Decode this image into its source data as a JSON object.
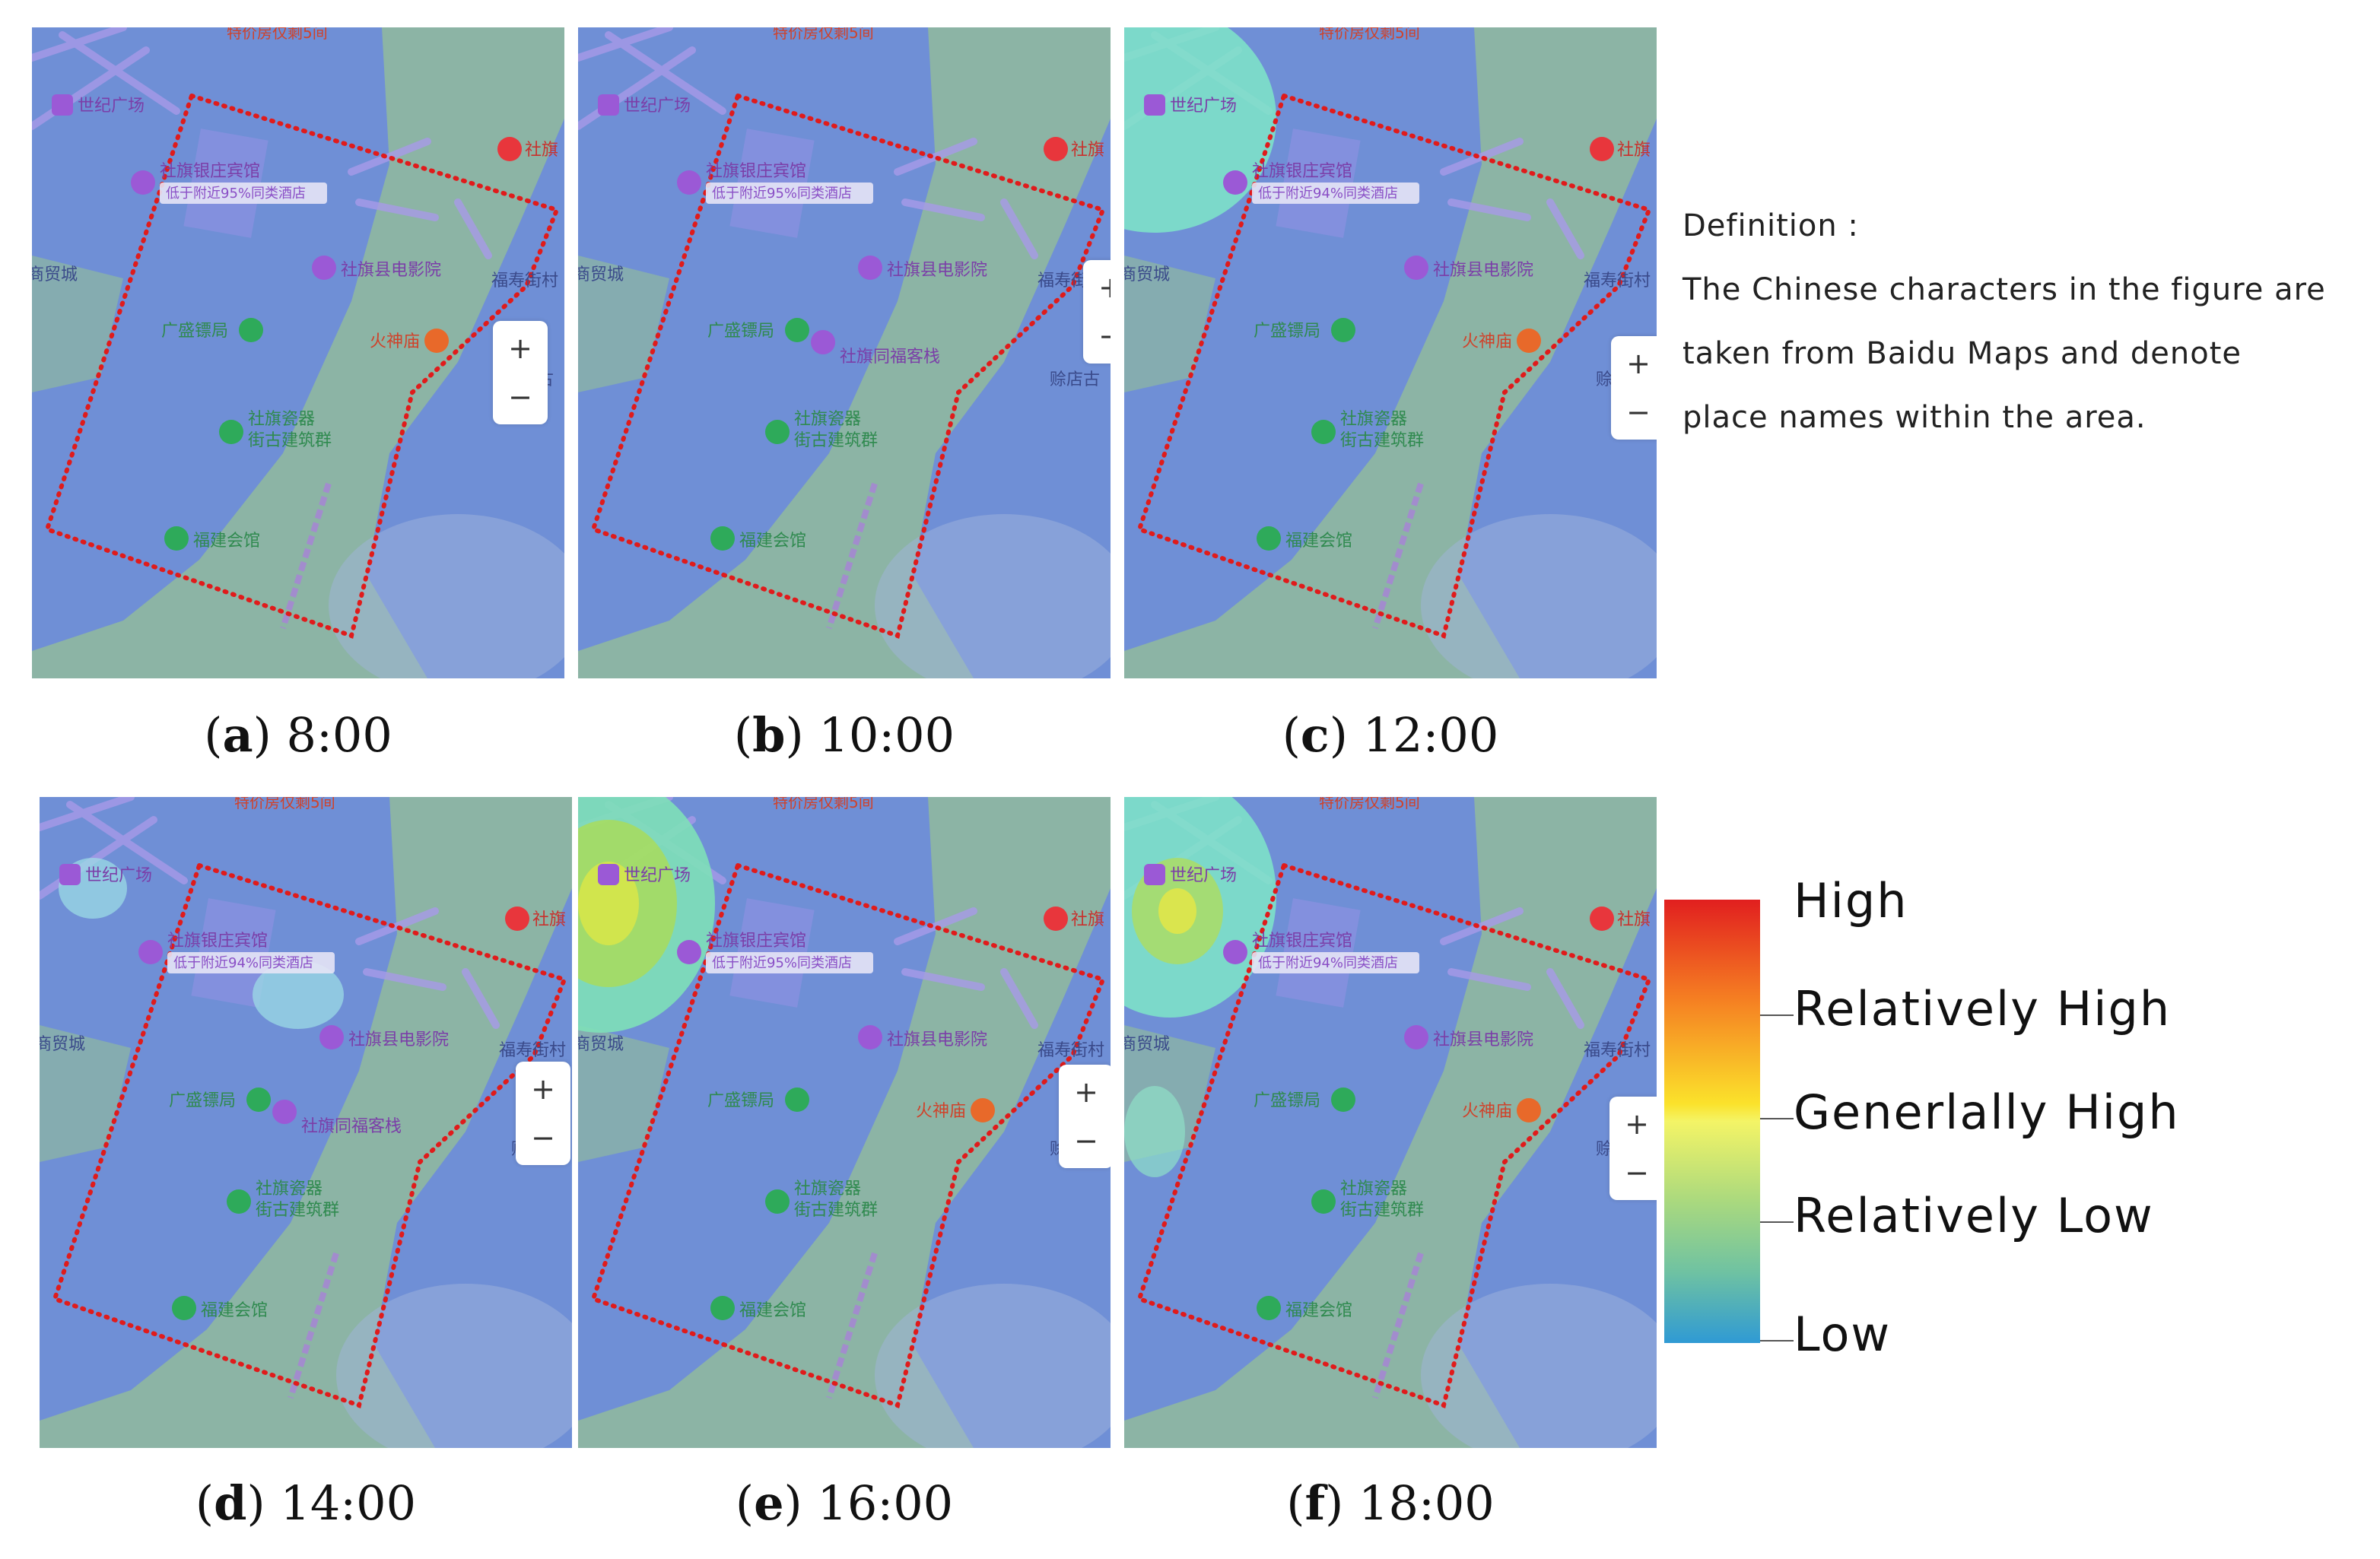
{
  "panels": [
    {
      "id": "a",
      "caption": {
        "letter": "a",
        "time": "8:00"
      }
    },
    {
      "id": "b",
      "caption": {
        "letter": "b",
        "time": "10:00"
      }
    },
    {
      "id": "c",
      "caption": {
        "letter": "c",
        "time": "12:00"
      }
    },
    {
      "id": "d",
      "caption": {
        "letter": "d",
        "time": "14:00"
      }
    },
    {
      "id": "e",
      "caption": {
        "letter": "e",
        "time": "16:00"
      }
    },
    {
      "id": "f",
      "caption": {
        "letter": "f",
        "time": "18:00"
      }
    }
  ],
  "map_labels": {
    "century_plaza": "世纪广场",
    "hotel": "社旗银庄宾馆",
    "hotel_deal_95": "低于附近95%同类酒店",
    "hotel_deal_94": "低于附近94%同类酒店",
    "cinema": "社旗县电影院",
    "guangsheng": "广盛镖局",
    "fire_temple": "火神庙",
    "porcelain_line1": "社旗瓷器",
    "porcelain_line2": "街古建筑群",
    "fujian_hall": "福建会馆",
    "inn": "社旗同福客栈",
    "fushou_street": "福寿街村",
    "sheqi_cut": "社旗",
    "commercial_city": "商贸城",
    "hanging_store": "赊店古",
    "top_notice": "特价房仅剩5间"
  },
  "zoom": {
    "in": "+",
    "out": "−"
  },
  "definition": {
    "title": "Definition :",
    "line1": "The Chinese characters in the figure are",
    "line2": "taken from Baidu Maps and denote",
    "line3": "place names within the area."
  },
  "legend": {
    "labels": [
      "High",
      "Relatively High",
      "Generlally High",
      "Relatively Low",
      "Low"
    ],
    "colors": [
      "#e11f1f",
      "#f57d22",
      "#fbe22b",
      "#6fc2a2",
      "#2f9ad4"
    ]
  },
  "colors": {
    "map_blue": "#6f8fd6",
    "map_green": "#8fb8a0",
    "boundary_red": "#e01b1b",
    "poi_purple": "#9b59d6",
    "poi_green": "#2eaa5a",
    "poi_red": "#e8363c",
    "poi_orange": "#e8692a",
    "label_purple": "#7b3ea8",
    "label_green": "#2f8a4f"
  }
}
